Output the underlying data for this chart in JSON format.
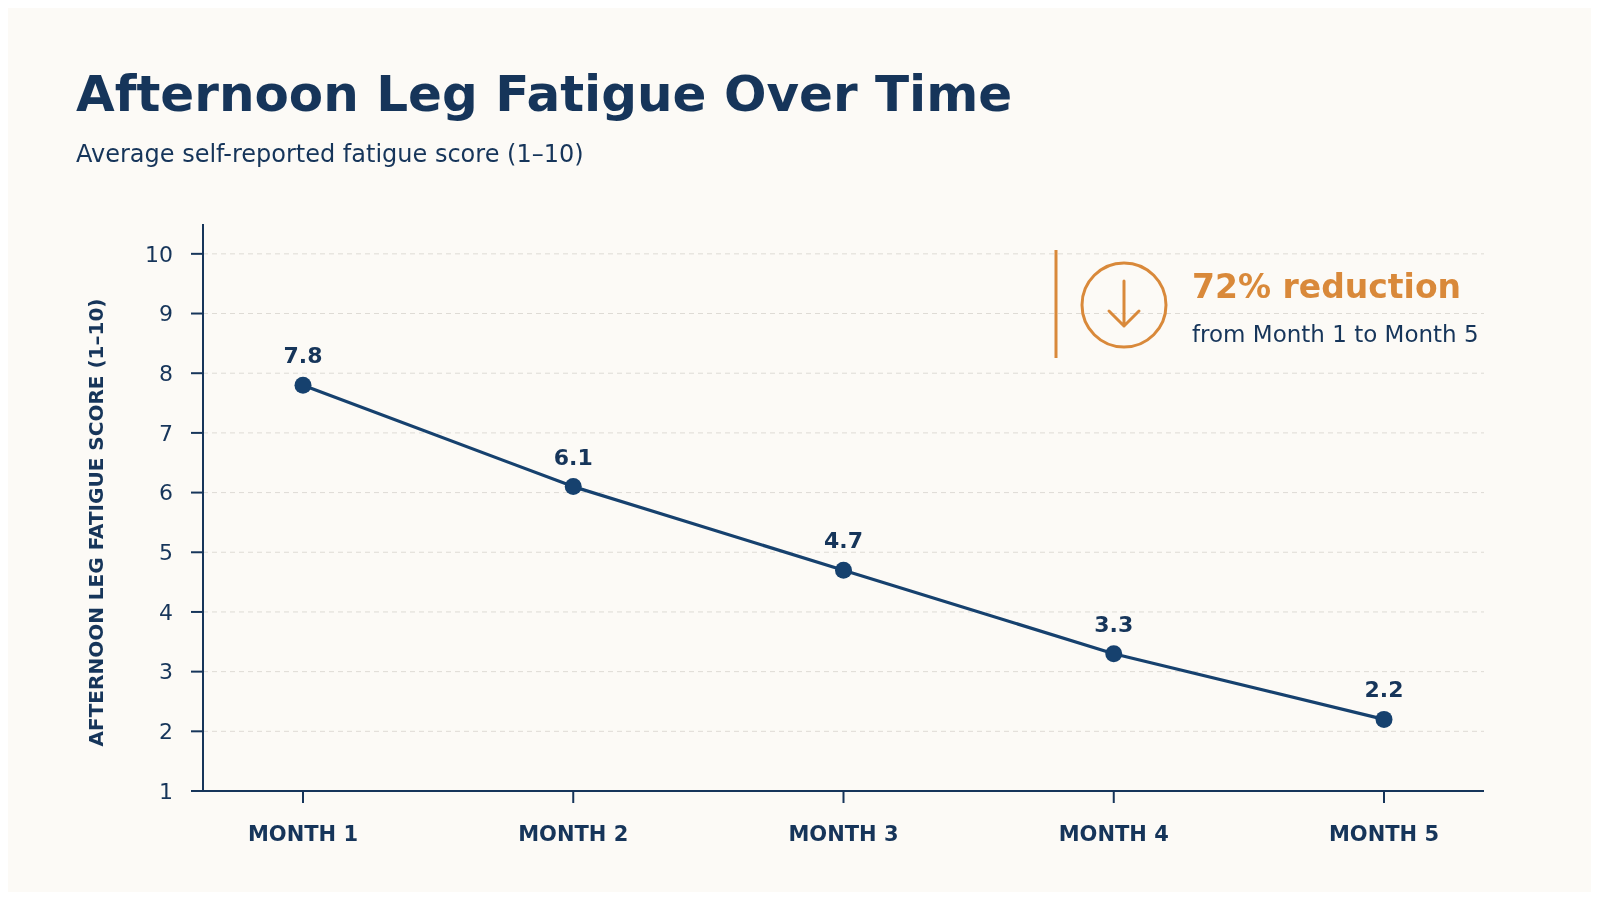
{
  "chart_data": {
    "type": "line",
    "title": "Afternoon Leg Fatigue Over Time",
    "subtitle": "Average self-reported fatigue score (1–10)",
    "ylabel": "AFTERNOON LEG FATIGUE SCORE (1–10)",
    "categories": [
      "MONTH 1",
      "MONTH 2",
      "MONTH 3",
      "MONTH 4",
      "MONTH 5"
    ],
    "series": [
      {
        "color": "#16416e",
        "values": [
          7.8,
          6.1,
          4.7,
          3.3,
          2.2
        ]
      }
    ],
    "ylim": [
      1,
      10.5
    ],
    "yticks": [
      1,
      2,
      3,
      4,
      5,
      6,
      7,
      8,
      9,
      10
    ],
    "grid": "y",
    "marker": "circle",
    "line_style": "solid",
    "data_labels": true,
    "annotations": [
      "72% reduction",
      "from Month 1 to Month 5"
    ]
  }
}
